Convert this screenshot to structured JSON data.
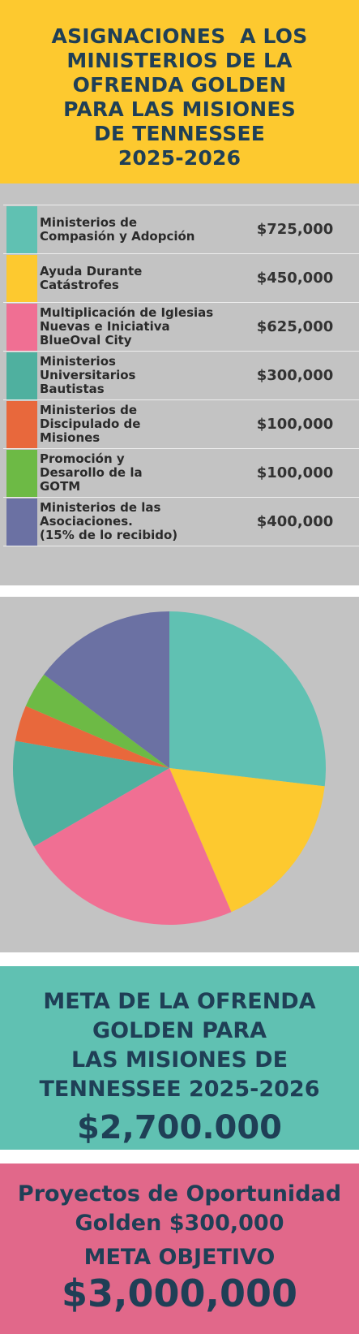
{
  "header": {
    "title_lines": [
      "ASIGNACIONES  A LOS",
      "MINISTERIOS DE LA",
      "OFRENDA GOLDEN",
      "PARA LAS MISIONES",
      "DE TENNESSEE",
      "2025-2026"
    ]
  },
  "allocations": [
    {
      "label_lines": [
        "Ministerios de",
        "Compasión y Adopción"
      ],
      "amount": "$725,000",
      "color": "#60c1b2"
    },
    {
      "label_lines": [
        "Ayuda Durante",
        "Catástrofes"
      ],
      "amount": "$450,000",
      "color": "#fdc92f"
    },
    {
      "label_lines": [
        "Multiplicación de Iglesias",
        "Nuevas e Iniciativa",
        "BlueOval City"
      ],
      "amount": "$625,000",
      "color": "#f06f93"
    },
    {
      "label_lines": [
        "Ministerios",
        "Universitarios",
        "Bautistas"
      ],
      "amount": "$300,000",
      "color": "#4fb09f"
    },
    {
      "label_lines": [
        "Ministerios de",
        "Discipulado de",
        "Misiones"
      ],
      "amount": "$100,000",
      "color": "#e8683c"
    },
    {
      "label_lines": [
        "Promoción y",
        "Desarollo de la",
        "GOTM"
      ],
      "amount": "$100,000",
      "color": "#6dba45"
    },
    {
      "label_lines": [
        "Ministerios de las",
        "Asociaciones.",
        "(15% de lo recibido)"
      ],
      "amount": "$400,000",
      "color": "#6b71a3"
    }
  ],
  "chart_data": {
    "type": "pie",
    "categories": [
      "Ministerios de Compasión y Adopción",
      "Ayuda Durante Catástrofes",
      "Multiplicación de Iglesias Nuevas e Iniciativa BlueOval City",
      "Ministerios Universitarios Bautistas",
      "Ministerios de Discipulado de Misiones",
      "Promoción y Desarollo de la GOTM",
      "Ministerios de las Asociaciones. (15% de lo recibido)"
    ],
    "values": [
      725000,
      450000,
      625000,
      300000,
      100000,
      100000,
      400000
    ],
    "colors": [
      "#60c1b2",
      "#fdc92f",
      "#f06f93",
      "#4fb09f",
      "#e8683c",
      "#6dba45",
      "#6b71a3"
    ]
  },
  "goal_section": {
    "title_lines": [
      "META DE LA OFRENDA",
      "GOLDEN PARA",
      "LAS MISIONES DE",
      "TENNESSEE 2025-2026"
    ],
    "amount": "$2,700.000"
  },
  "projects_section": {
    "lines": [
      "Proyectos de Oportunidad",
      "Golden $300,000"
    ],
    "goal_label": "META OBJETIVO",
    "goal_amount": "$3,000,000"
  }
}
